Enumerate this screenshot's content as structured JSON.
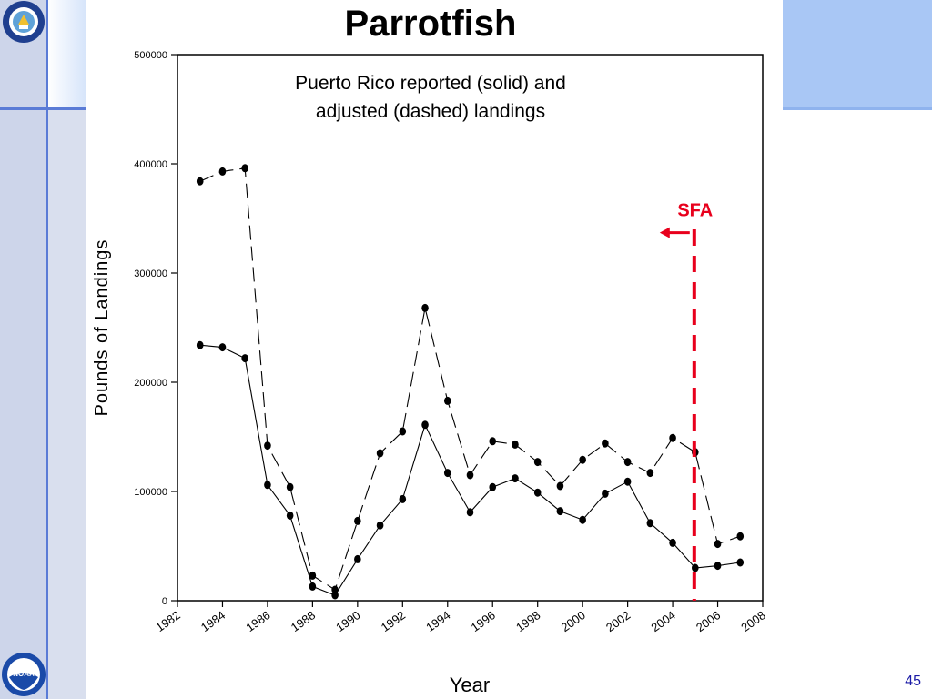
{
  "slide": {
    "title": "Parrotfish",
    "number": "45"
  },
  "logos": {
    "top_left": "doc-seal-icon",
    "bottom_left": "noaa-logo-icon",
    "bottom_left_text": "NOAA"
  },
  "colors": {
    "accent_blue": "#a9c7f5",
    "sfa_red": "#e8001c"
  },
  "chart_data": {
    "type": "line",
    "title": "Puerto Rico reported (solid) and adjusted (dashed) landings",
    "title_lines": [
      "Puerto Rico reported (solid) and",
      "adjusted (dashed) landings"
    ],
    "xlabel": "Year",
    "ylabel": "Pounds of Landings",
    "xlim": [
      1982,
      2008
    ],
    "ylim": [
      0,
      500000
    ],
    "xticks": [
      1982,
      1984,
      1986,
      1988,
      1990,
      1992,
      1994,
      1996,
      1998,
      2000,
      2002,
      2004,
      2006,
      2008
    ],
    "yticks": [
      0,
      100000,
      200000,
      300000,
      400000,
      500000
    ],
    "x": [
      1983,
      1984,
      1985,
      1986,
      1987,
      1988,
      1989,
      1990,
      1991,
      1992,
      1993,
      1994,
      1995,
      1996,
      1997,
      1998,
      1999,
      2000,
      2001,
      2002,
      2003,
      2004,
      2005,
      2006,
      2007
    ],
    "series": [
      {
        "style": "solid",
        "values": [
          234000,
          232000,
          222000,
          106000,
          78000,
          13000,
          5000,
          38000,
          69000,
          93000,
          161000,
          117000,
          81000,
          104000,
          112000,
          99000,
          82000,
          74000,
          98000,
          109000,
          71000,
          53000,
          30000,
          32000,
          35000
        ]
      },
      {
        "style": "dashed",
        "values": [
          384000,
          393000,
          396000,
          142000,
          104000,
          23000,
          10000,
          73000,
          135000,
          155000,
          268000,
          183000,
          115000,
          146000,
          143000,
          127000,
          105000,
          129000,
          144000,
          127000,
          117000,
          149000,
          136000,
          52000,
          59000
        ]
      }
    ],
    "annotations": [
      {
        "label": "SFA",
        "x": 2005,
        "color": "#e8001c",
        "style": "dashed-vertical",
        "arrow": "left"
      }
    ],
    "grid": false,
    "legend": "none"
  }
}
